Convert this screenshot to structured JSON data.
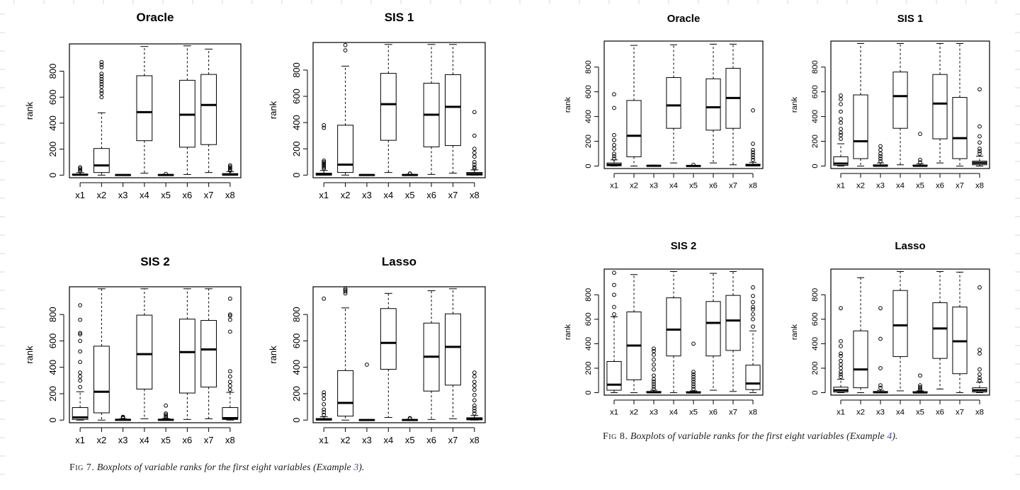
{
  "figure7": {
    "caption_label": "Fig 7.",
    "caption_text": "Boxplots of variable ranks for the first eight variables (Example ",
    "caption_ref": "3",
    "caption_end": ")."
  },
  "figure8": {
    "caption_label": "Fig 8.",
    "caption_text": "Boxplots of variable ranks for the first eight variables (Example ",
    "caption_ref": "4",
    "caption_end": ")."
  },
  "chart_data": [
    {
      "type": "box",
      "figure": "7",
      "title": "Oracle",
      "xlabel": "",
      "ylabel": "rank",
      "categories": [
        "x1",
        "x2",
        "x3",
        "x4",
        "x5",
        "x6",
        "x7",
        "x8"
      ],
      "yticks": [
        0,
        200,
        400,
        600,
        800
      ],
      "ylim": [
        -20,
        1010
      ],
      "boxes": [
        {
          "lw": 0,
          "q1": 0,
          "med": 3,
          "q3": 8,
          "uw": 20,
          "outliers": [
            30,
            40,
            50,
            60
          ]
        },
        {
          "lw": 0,
          "q1": 20,
          "med": 75,
          "q3": 205,
          "uw": 480,
          "outliers": [
            600,
            630,
            650,
            680,
            700,
            720,
            740,
            760,
            780,
            830,
            850,
            870
          ]
        },
        {
          "lw": 0,
          "q1": 0,
          "med": 1,
          "q3": 2,
          "uw": 3,
          "outliers": []
        },
        {
          "lw": 15,
          "q1": 265,
          "med": 485,
          "q3": 765,
          "uw": 990,
          "outliers": []
        },
        {
          "lw": 0,
          "q1": 0,
          "med": 1,
          "q3": 3,
          "uw": 6,
          "outliers": [
            10
          ]
        },
        {
          "lw": 5,
          "q1": 215,
          "med": 465,
          "q3": 730,
          "uw": 995,
          "outliers": []
        },
        {
          "lw": 20,
          "q1": 235,
          "med": 540,
          "q3": 775,
          "uw": 970,
          "outliers": []
        },
        {
          "lw": 0,
          "q1": 0,
          "med": 4,
          "q3": 12,
          "uw": 28,
          "outliers": [
            35,
            45,
            55,
            65,
            75
          ]
        }
      ]
    },
    {
      "type": "box",
      "figure": "7",
      "title": "SIS 1",
      "xlabel": "",
      "ylabel": "rank",
      "categories": [
        "x1",
        "x2",
        "x3",
        "x4",
        "x5",
        "x6",
        "x7",
        "x8"
      ],
      "yticks": [
        0,
        200,
        400,
        600,
        800
      ],
      "ylim": [
        -20,
        1010
      ],
      "boxes": [
        {
          "lw": 0,
          "q1": 0,
          "med": 5,
          "q3": 15,
          "uw": 35,
          "outliers": [
            50,
            60,
            70,
            80,
            90,
            100,
            110,
            360,
            380
          ]
        },
        {
          "lw": 0,
          "q1": 20,
          "med": 80,
          "q3": 380,
          "uw": 830,
          "outliers": [
            950,
            990
          ]
        },
        {
          "lw": 0,
          "q1": 0,
          "med": 1,
          "q3": 2,
          "uw": 3,
          "outliers": []
        },
        {
          "lw": 20,
          "q1": 265,
          "med": 540,
          "q3": 775,
          "uw": 995,
          "outliers": []
        },
        {
          "lw": 0,
          "q1": 0,
          "med": 1,
          "q3": 4,
          "uw": 7,
          "outliers": [
            10,
            12
          ]
        },
        {
          "lw": 5,
          "q1": 215,
          "med": 460,
          "q3": 700,
          "uw": 995,
          "outliers": []
        },
        {
          "lw": 15,
          "q1": 225,
          "med": 520,
          "q3": 765,
          "uw": 995,
          "outliers": []
        },
        {
          "lw": 0,
          "q1": 0,
          "med": 8,
          "q3": 20,
          "uw": 40,
          "outliers": [
            50,
            60,
            80,
            100,
            140,
            170,
            200,
            300,
            480
          ]
        }
      ]
    },
    {
      "type": "box",
      "figure": "7",
      "title": "SIS 2",
      "xlabel": "",
      "ylabel": "rank",
      "categories": [
        "x1",
        "x2",
        "x3",
        "x4",
        "x5",
        "x6",
        "x7",
        "x8"
      ],
      "yticks": [
        0,
        200,
        400,
        600,
        800
      ],
      "ylim": [
        -20,
        1010
      ],
      "boxes": [
        {
          "lw": 0,
          "q1": 5,
          "med": 20,
          "q3": 95,
          "uw": 215,
          "outliers": [
            250,
            300,
            330,
            360,
            440,
            520,
            600,
            650,
            660,
            760,
            870
          ]
        },
        {
          "lw": 0,
          "q1": 55,
          "med": 215,
          "q3": 560,
          "uw": 995,
          "outliers": []
        },
        {
          "lw": 0,
          "q1": 0,
          "med": 2,
          "q3": 5,
          "uw": 10,
          "outliers": [
            15,
            20,
            25
          ]
        },
        {
          "lw": 10,
          "q1": 235,
          "med": 500,
          "q3": 795,
          "uw": 995,
          "outliers": []
        },
        {
          "lw": 0,
          "q1": 0,
          "med": 2,
          "q3": 6,
          "uw": 12,
          "outliers": [
            20,
            30,
            40,
            50,
            110
          ]
        },
        {
          "lw": 5,
          "q1": 205,
          "med": 515,
          "q3": 765,
          "uw": 995,
          "outliers": []
        },
        {
          "lw": 10,
          "q1": 250,
          "med": 535,
          "q3": 755,
          "uw": 995,
          "outliers": []
        },
        {
          "lw": 0,
          "q1": 5,
          "med": 15,
          "q3": 95,
          "uw": 210,
          "outliers": [
            230,
            260,
            290,
            330,
            370,
            670,
            760,
            790,
            800,
            920
          ]
        }
      ]
    },
    {
      "type": "box",
      "figure": "7",
      "title": "Lasso",
      "xlabel": "",
      "ylabel": "rank",
      "categories": [
        "x1",
        "x2",
        "x3",
        "x4",
        "x5",
        "x6",
        "x7",
        "x8"
      ],
      "yticks": [
        0,
        200,
        400,
        600,
        800
      ],
      "ylim": [
        -20,
        1010
      ],
      "boxes": [
        {
          "lw": 0,
          "q1": 0,
          "med": 5,
          "q3": 12,
          "uw": 25,
          "outliers": [
            40,
            60,
            80,
            120,
            160,
            190,
            210,
            920
          ]
        },
        {
          "lw": 0,
          "q1": 30,
          "med": 130,
          "q3": 375,
          "uw": 850,
          "outliers": [
            960,
            975,
            985,
            995
          ]
        },
        {
          "lw": 0,
          "q1": 0,
          "med": 1,
          "q3": 2,
          "uw": 3,
          "outliers": [
            420
          ]
        },
        {
          "lw": 20,
          "q1": 385,
          "med": 585,
          "q3": 845,
          "uw": 960,
          "outliers": []
        },
        {
          "lw": 0,
          "q1": 0,
          "med": 1,
          "q3": 3,
          "uw": 6,
          "outliers": [
            10,
            15
          ]
        },
        {
          "lw": 5,
          "q1": 220,
          "med": 480,
          "q3": 735,
          "uw": 980,
          "outliers": []
        },
        {
          "lw": 10,
          "q1": 265,
          "med": 555,
          "q3": 805,
          "uw": 995,
          "outliers": []
        },
        {
          "lw": 0,
          "q1": 2,
          "med": 8,
          "q3": 18,
          "uw": 35,
          "outliers": [
            50,
            70,
            90,
            110,
            150,
            190,
            230,
            260,
            290,
            330,
            360
          ]
        }
      ]
    },
    {
      "type": "box",
      "figure": "8",
      "title": "Oracle",
      "xlabel": "",
      "ylabel": "rank",
      "categories": [
        "x1",
        "x2",
        "x3",
        "x4",
        "x5",
        "x6",
        "x7",
        "x8"
      ],
      "yticks": [
        0,
        200,
        400,
        600,
        800
      ],
      "ylim": [
        -20,
        1010
      ],
      "boxes": [
        {
          "lw": 0,
          "q1": 2,
          "med": 10,
          "q3": 25,
          "uw": 50,
          "outliers": [
            60,
            80,
            100,
            140,
            170,
            210,
            250,
            470,
            580
          ]
        },
        {
          "lw": 0,
          "q1": 75,
          "med": 245,
          "q3": 530,
          "uw": 975,
          "outliers": []
        },
        {
          "lw": 0,
          "q1": 0,
          "med": 2,
          "q3": 5,
          "uw": 8,
          "outliers": []
        },
        {
          "lw": 25,
          "q1": 305,
          "med": 490,
          "q3": 715,
          "uw": 980,
          "outliers": []
        },
        {
          "lw": 0,
          "q1": 0,
          "med": 1,
          "q3": 3,
          "uw": 6,
          "outliers": [
            10
          ]
        },
        {
          "lw": 25,
          "q1": 290,
          "med": 475,
          "q3": 705,
          "uw": 985,
          "outliers": []
        },
        {
          "lw": 10,
          "q1": 305,
          "med": 550,
          "q3": 790,
          "uw": 985,
          "outliers": []
        },
        {
          "lw": 0,
          "q1": 2,
          "med": 6,
          "q3": 15,
          "uw": 30,
          "outliers": [
            50,
            70,
            90,
            110,
            130,
            180,
            450
          ]
        }
      ]
    },
    {
      "type": "box",
      "figure": "8",
      "title": "SIS 1",
      "xlabel": "",
      "ylabel": "rank",
      "categories": [
        "x1",
        "x2",
        "x3",
        "x4",
        "x5",
        "x6",
        "x7",
        "x8"
      ],
      "yticks": [
        0,
        200,
        400,
        600,
        800
      ],
      "ylim": [
        -20,
        1010
      ],
      "boxes": [
        {
          "lw": 0,
          "q1": 5,
          "med": 20,
          "q3": 75,
          "uw": 180,
          "outliers": [
            220,
            250,
            270,
            300,
            350,
            380,
            440,
            500,
            540,
            570
          ]
        },
        {
          "lw": 0,
          "q1": 60,
          "med": 200,
          "q3": 575,
          "uw": 990,
          "outliers": []
        },
        {
          "lw": 0,
          "q1": 0,
          "med": 3,
          "q3": 10,
          "uw": 25,
          "outliers": [
            40,
            60,
            80,
            100,
            130,
            160
          ]
        },
        {
          "lw": 10,
          "q1": 305,
          "med": 565,
          "q3": 760,
          "uw": 990,
          "outliers": []
        },
        {
          "lw": 0,
          "q1": 0,
          "med": 2,
          "q3": 8,
          "uw": 18,
          "outliers": [
            30,
            50,
            260
          ]
        },
        {
          "lw": 25,
          "q1": 220,
          "med": 505,
          "q3": 740,
          "uw": 990,
          "outliers": []
        },
        {
          "lw": 0,
          "q1": 60,
          "med": 225,
          "q3": 555,
          "uw": 990,
          "outliers": []
        },
        {
          "lw": 0,
          "q1": 10,
          "med": 25,
          "q3": 40,
          "uw": 80,
          "outliers": [
            100,
            120,
            140,
            190,
            240,
            320,
            620
          ]
        }
      ]
    },
    {
      "type": "box",
      "figure": "8",
      "title": "SIS 2",
      "xlabel": "",
      "ylabel": "rank",
      "categories": [
        "x1",
        "x2",
        "x3",
        "x4",
        "x5",
        "x6",
        "x7",
        "x8"
      ],
      "yticks": [
        0,
        200,
        400,
        600,
        800
      ],
      "ylim": [
        -20,
        1010
      ],
      "boxes": [
        {
          "lw": 0,
          "q1": 20,
          "med": 65,
          "q3": 255,
          "uw": 620,
          "outliers": [
            640,
            700,
            800,
            880,
            980
          ]
        },
        {
          "lw": 0,
          "q1": 105,
          "med": 385,
          "q3": 660,
          "uw": 965,
          "outliers": []
        },
        {
          "lw": 0,
          "q1": 0,
          "med": 3,
          "q3": 10,
          "uw": 20,
          "outliers": [
            30,
            50,
            70,
            90,
            110,
            140,
            190,
            230,
            270,
            310,
            340,
            360
          ]
        },
        {
          "lw": 0,
          "q1": 300,
          "med": 515,
          "q3": 775,
          "uw": 990,
          "outliers": []
        },
        {
          "lw": 0,
          "q1": 0,
          "med": 2,
          "q3": 8,
          "uw": 15,
          "outliers": [
            30,
            50,
            70,
            90,
            110,
            130,
            150,
            170,
            400
          ]
        },
        {
          "lw": 20,
          "q1": 300,
          "med": 570,
          "q3": 745,
          "uw": 975,
          "outliers": []
        },
        {
          "lw": 10,
          "q1": 345,
          "med": 590,
          "q3": 795,
          "uw": 990,
          "outliers": []
        },
        {
          "lw": 0,
          "q1": 25,
          "med": 75,
          "q3": 225,
          "uw": 505,
          "outliers": [
            540,
            600,
            640,
            680,
            700,
            740,
            790,
            860
          ]
        }
      ]
    },
    {
      "type": "box",
      "figure": "8",
      "title": "Lasso",
      "xlabel": "",
      "ylabel": "rank",
      "categories": [
        "x1",
        "x2",
        "x3",
        "x4",
        "x5",
        "x6",
        "x7",
        "x8"
      ],
      "yticks": [
        0,
        200,
        400,
        600,
        800
      ],
      "ylim": [
        -20,
        1010
      ],
      "boxes": [
        {
          "lw": 0,
          "q1": 5,
          "med": 20,
          "q3": 45,
          "uw": 110,
          "outliers": [
            130,
            150,
            170,
            200,
            230,
            260,
            300,
            320,
            380,
            420,
            690
          ]
        },
        {
          "lw": 0,
          "q1": 40,
          "med": 190,
          "q3": 505,
          "uw": 940,
          "outliers": []
        },
        {
          "lw": 0,
          "q1": 0,
          "med": 3,
          "q3": 10,
          "uw": 20,
          "outliers": [
            40,
            60,
            200,
            440,
            690
          ]
        },
        {
          "lw": 15,
          "q1": 295,
          "med": 550,
          "q3": 835,
          "uw": 990,
          "outliers": []
        },
        {
          "lw": 0,
          "q1": 0,
          "med": 2,
          "q3": 8,
          "uw": 15,
          "outliers": [
            25,
            35,
            45,
            60,
            140
          ]
        },
        {
          "lw": 30,
          "q1": 280,
          "med": 525,
          "q3": 735,
          "uw": 990,
          "outliers": []
        },
        {
          "lw": 0,
          "q1": 155,
          "med": 420,
          "q3": 700,
          "uw": 985,
          "outliers": []
        },
        {
          "lw": 0,
          "q1": 5,
          "med": 20,
          "q3": 40,
          "uw": 85,
          "outliers": [
            100,
            120,
            150,
            190,
            320,
            350,
            860
          ]
        }
      ]
    }
  ]
}
